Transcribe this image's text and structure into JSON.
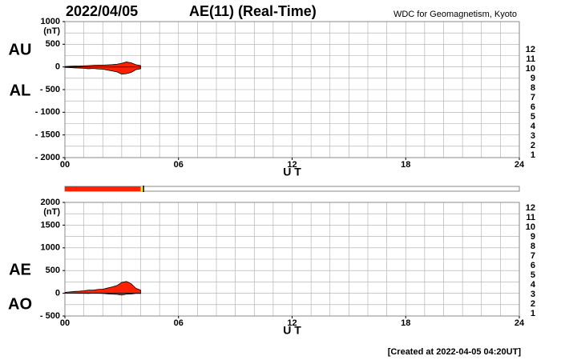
{
  "header": {
    "date": "2022/04/05",
    "title": "AE(11) (Real-Time)",
    "source": "WDC for Geomagnetism, Kyoto"
  },
  "footer": "[Created at 2022-04-05 04:20UT]",
  "station_legend": [
    {
      "label": "12",
      "color": "#e8207a"
    },
    {
      "label": "11",
      "color": "#e02020"
    },
    {
      "label": "10",
      "color": "#f08c00"
    },
    {
      "label": "9",
      "color": "#f0e000"
    },
    {
      "label": "8",
      "color": "#a0e020"
    },
    {
      "label": "7",
      "color": "#20d0e0"
    },
    {
      "label": "6",
      "color": "#2080f0"
    },
    {
      "label": "5",
      "color": "#2020c0"
    },
    {
      "label": "4",
      "color": "#c020c0"
    },
    {
      "label": "3",
      "color": "#202020"
    },
    {
      "label": "2",
      "color": "#606060"
    },
    {
      "label": "1",
      "color": "#c0c0c0"
    }
  ],
  "coverage": [
    {
      "start": 0,
      "end": 4.0,
      "color": "#ff2200"
    },
    {
      "start": 4.0,
      "end": 4.15,
      "color": "#ffff00"
    }
  ],
  "chart_data": [
    {
      "type": "area",
      "ylabel": "(nT)",
      "xlabel": "U T",
      "fill": "#ff2200",
      "xlim": [
        0,
        24
      ],
      "xticks": [
        {
          "value": 0,
          "label": "00"
        },
        {
          "value": 6,
          "label": "06"
        },
        12,
        18,
        24
      ],
      "ylim": [
        -2000,
        1000
      ],
      "yticks": [
        1000,
        500,
        0,
        {
          "value": -500,
          "label": "- 500"
        },
        {
          "value": -1000,
          "label": "- 1000"
        },
        {
          "value": -1500,
          "label": "- 1500"
        },
        {
          "value": -2000,
          "label": "- 2000"
        }
      ],
      "xgrid_step": 1,
      "ygrid_step": 250,
      "x": [
        0,
        0.25,
        0.5,
        0.75,
        1,
        1.25,
        1.5,
        1.75,
        2,
        2.25,
        2.5,
        2.75,
        3,
        3.25,
        3.5,
        3.75,
        4
      ],
      "series": [
        {
          "name": "AU",
          "color": "#000000",
          "values": [
            10,
            15,
            20,
            20,
            25,
            30,
            35,
            40,
            40,
            45,
            50,
            60,
            80,
            110,
            90,
            50,
            30
          ]
        },
        {
          "name": "AL",
          "color": "#000000",
          "values": [
            -10,
            -15,
            -20,
            -25,
            -30,
            -40,
            -35,
            -45,
            -50,
            -70,
            -90,
            -110,
            -160,
            -150,
            -120,
            -60,
            -40
          ]
        }
      ]
    },
    {
      "type": "area",
      "ylabel": "(nT)",
      "xlabel": "U T",
      "fill": "#ff2200",
      "xlim": [
        0,
        24
      ],
      "xticks": [
        {
          "value": 0,
          "label": "00"
        },
        {
          "value": 6,
          "label": "06"
        },
        12,
        18,
        24
      ],
      "ylim": [
        -500,
        2000
      ],
      "yticks": [
        2000,
        1500,
        1000,
        500,
        0,
        {
          "value": -500,
          "label": "- 500"
        }
      ],
      "xgrid_step": 1,
      "ygrid_step": 250,
      "x": [
        0,
        0.25,
        0.5,
        0.75,
        1,
        1.25,
        1.5,
        1.75,
        2,
        2.25,
        2.5,
        2.75,
        3,
        3.25,
        3.5,
        3.75,
        4
      ],
      "series": [
        {
          "name": "AE",
          "color": "#000000",
          "values": [
            20,
            30,
            40,
            45,
            55,
            70,
            70,
            85,
            90,
            115,
            140,
            170,
            240,
            260,
            210,
            110,
            70
          ]
        },
        {
          "name": "AO",
          "color": "#000000",
          "values": [
            0,
            0,
            0,
            -2.5,
            -2.5,
            -5,
            0,
            -2.5,
            -5,
            -12.5,
            -20,
            -25,
            -40,
            -20,
            -15,
            -5,
            -5
          ]
        }
      ]
    }
  ]
}
